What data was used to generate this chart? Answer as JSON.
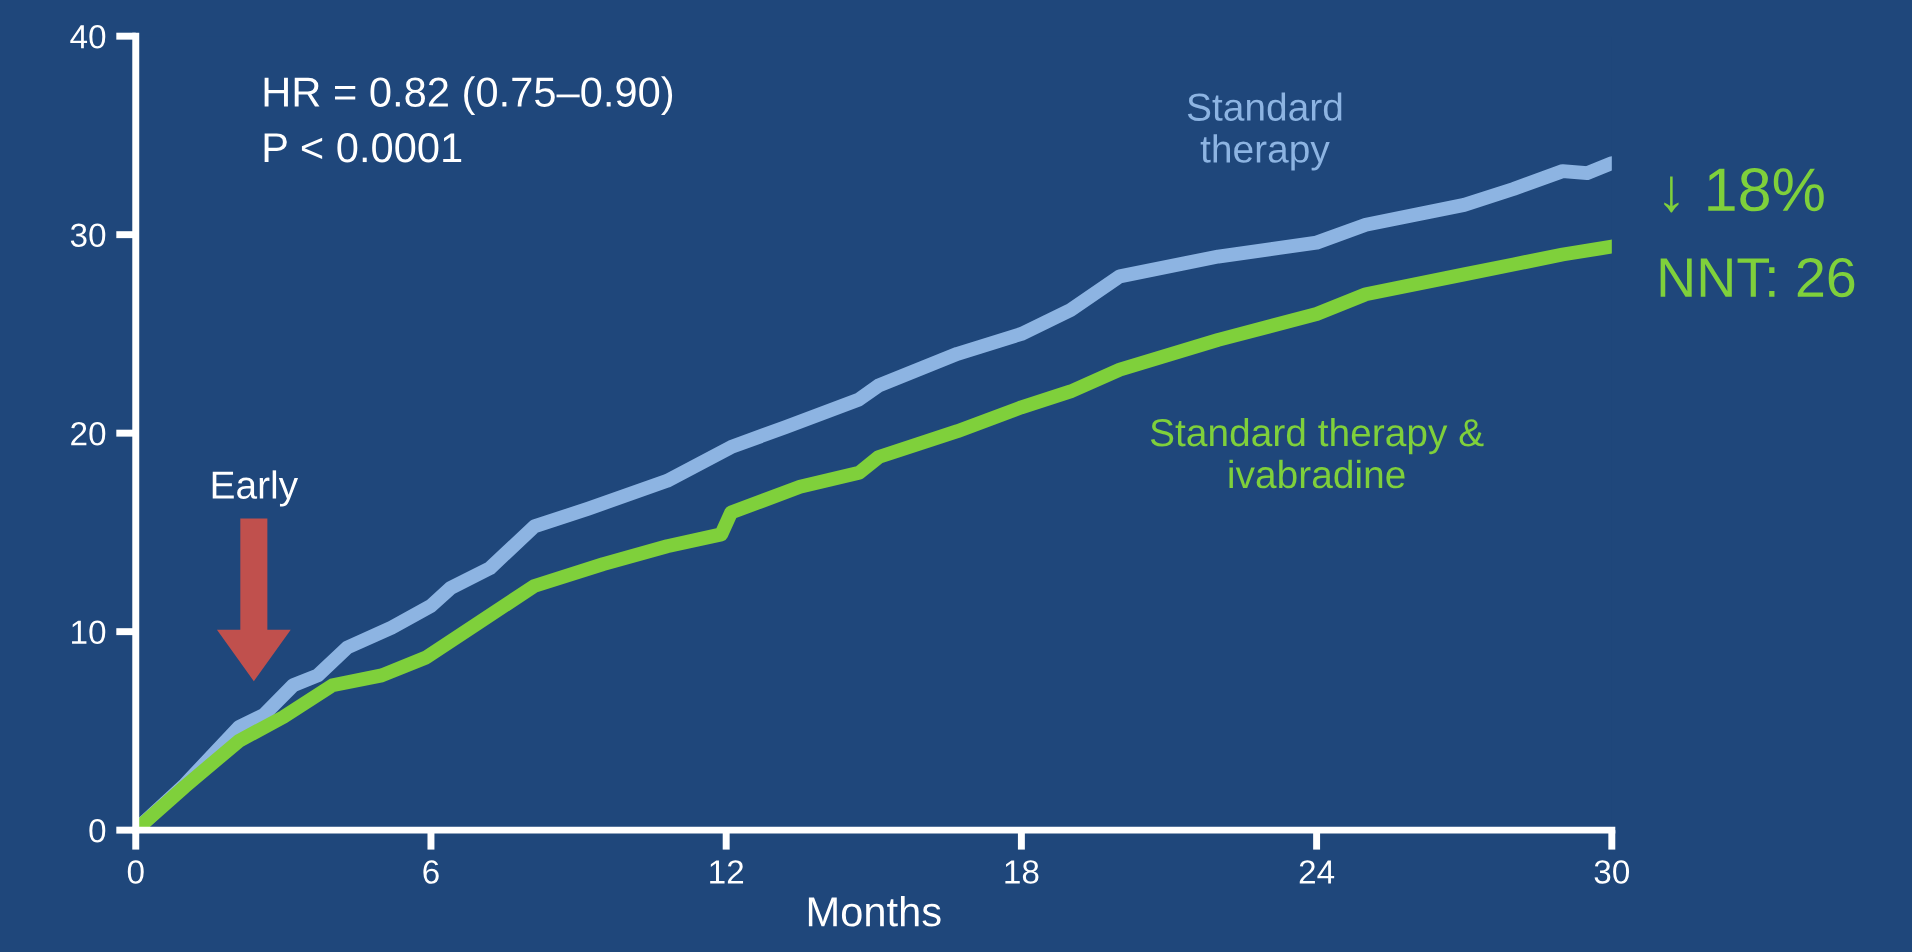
{
  "chart_data": {
    "type": "line",
    "xlabel": "Months",
    "xlim": [
      0,
      30
    ],
    "xticks": [
      0,
      6,
      12,
      18,
      24,
      30
    ],
    "ylim": [
      0,
      40
    ],
    "yticks": [
      0,
      10,
      20,
      30,
      40
    ],
    "grid": false,
    "legend": false,
    "marker": "none",
    "line_style": "solid",
    "series": [
      {
        "name": "Standard therapy",
        "color": "#8db4e2",
        "x": [
          0,
          1,
          2.1,
          2.6,
          3.2,
          3.7,
          4.3,
          5.2,
          6.0,
          6.4,
          7.2,
          8.1,
          9.2,
          10.8,
          12.1,
          13.2,
          14.7,
          15.1,
          16.7,
          18,
          19,
          20,
          22,
          24,
          25,
          27,
          28,
          29,
          29.5,
          30
        ],
        "values": [
          0,
          2.3,
          5.2,
          5.8,
          7.3,
          7.8,
          9.2,
          10.2,
          11.3,
          12.2,
          13.2,
          15.3,
          16.2,
          17.6,
          19.3,
          20.3,
          21.7,
          22.4,
          24.0,
          25.0,
          26.2,
          27.9,
          28.9,
          29.6,
          30.5,
          31.5,
          32.3,
          33.2,
          33.1,
          33.6
        ]
      },
      {
        "name": "Standard therapy & ivabradine",
        "color": "#7fd03b",
        "x": [
          0,
          1,
          2.1,
          3,
          4.0,
          5.0,
          5.9,
          7.0,
          8.1,
          9.5,
          10.8,
          11.9,
          12.1,
          13.5,
          14.7,
          15.1,
          16.7,
          18,
          19,
          20,
          22,
          24,
          25,
          27,
          28,
          29,
          30
        ],
        "values": [
          0,
          2.2,
          4.5,
          5.7,
          7.3,
          7.8,
          8.7,
          10.5,
          12.3,
          13.4,
          14.3,
          14.9,
          16.0,
          17.3,
          18.0,
          18.8,
          20.1,
          21.3,
          22.1,
          23.2,
          24.7,
          26.0,
          27.0,
          28.0,
          28.5,
          29.0,
          29.4
        ]
      }
    ],
    "annotations": [
      "HR = 0.82 (0.75–0.90)",
      "P < 0.0001",
      "Early",
      "↓ 18%",
      "NNT: 26"
    ]
  }
}
